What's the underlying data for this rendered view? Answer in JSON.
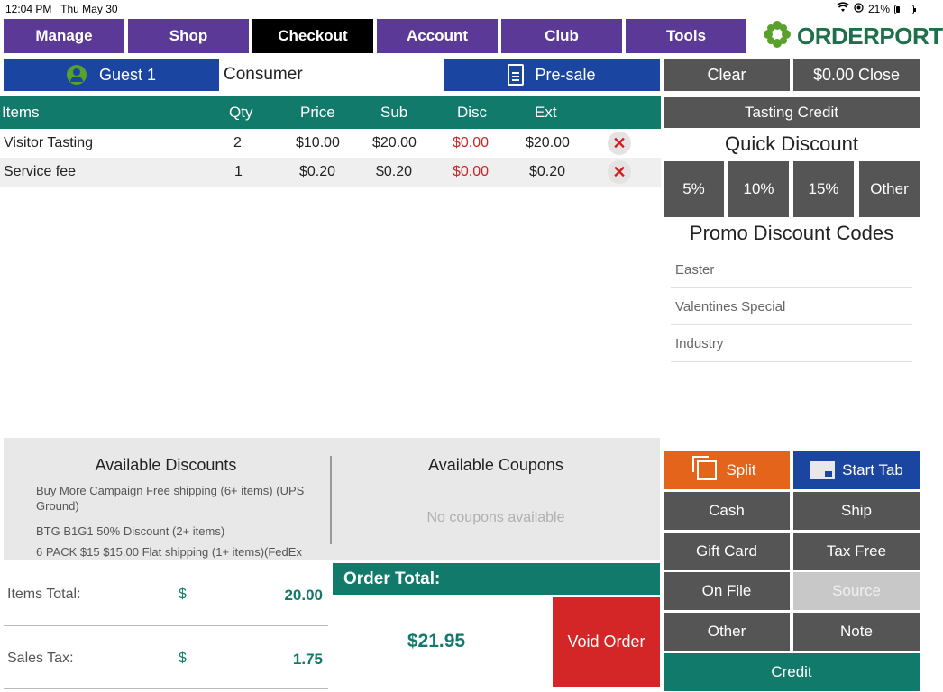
{
  "status_bar": {
    "time": "12:04 PM",
    "date": "Thu May 30",
    "battery": "21%"
  },
  "nav": {
    "items": [
      "Manage",
      "Shop",
      "Checkout",
      "Account",
      "Club",
      "Tools"
    ],
    "active": "Checkout"
  },
  "logo": {
    "text": "ORDERPORT"
  },
  "customer": {
    "guest_label": "Guest 1",
    "type": "Consumer"
  },
  "toolbar": {
    "presale_label": "Pre-sale",
    "clear_label": "Clear",
    "close_label": "$0.00 Close"
  },
  "items_table": {
    "headers": [
      "Items",
      "Qty",
      "Price",
      "Sub",
      "Disc",
      "Ext"
    ],
    "rows": [
      {
        "item": "Visitor Tasting",
        "qty": "2",
        "price": "$10.00",
        "sub": "$20.00",
        "disc": "$0.00",
        "ext": "$20.00"
      },
      {
        "item": "Service fee",
        "qty": "1",
        "price": "$0.20",
        "sub": "$0.20",
        "disc": "$0.00",
        "ext": "$0.20"
      }
    ]
  },
  "right_panel": {
    "tasting_credit_label": "Tasting Credit",
    "quick_discount_title": "Quick Discount",
    "quick_discounts": [
      "5%",
      "10%",
      "15%",
      "Other"
    ],
    "promo_title": "Promo Discount Codes",
    "promo_codes": [
      "Easter",
      "Valentines Special",
      "Industry"
    ]
  },
  "discounts": {
    "title": "Available Discounts",
    "items": [
      "Buy More Campaign Free shipping (6+ items) (UPS Ground)",
      "BTG B1G1 50% Discount (2+ items)",
      "6 PACK $15 $15.00 Flat shipping (1+ items)(FedEx"
    ]
  },
  "coupons": {
    "title": "Available Coupons",
    "empty_text": "No coupons available"
  },
  "totals": {
    "items_total_label": "Items Total:",
    "items_total_symbol": "$",
    "items_total_value": "20.00",
    "sales_tax_label": "Sales Tax:",
    "sales_tax_symbol": "$",
    "sales_tax_value": "1.75",
    "order_total_label": "Order Total:",
    "order_total_value": "$21.95"
  },
  "actions": {
    "void_label": "Void Order",
    "split_label": "Split",
    "start_tab_label": "Start Tab",
    "cash_label": "Cash",
    "ship_label": "Ship",
    "gift_card_label": "Gift Card",
    "tax_free_label": "Tax Free",
    "on_file_label": "On File",
    "source_label": "Source",
    "other_label": "Other",
    "note_label": "Note",
    "credit_label": "Credit"
  },
  "colors": {
    "nav_purple": "#5b3a97",
    "teal": "#127a6a",
    "blue": "#1a45a0",
    "grey": "#555555",
    "orange": "#e4641b",
    "red": "#d42626"
  }
}
